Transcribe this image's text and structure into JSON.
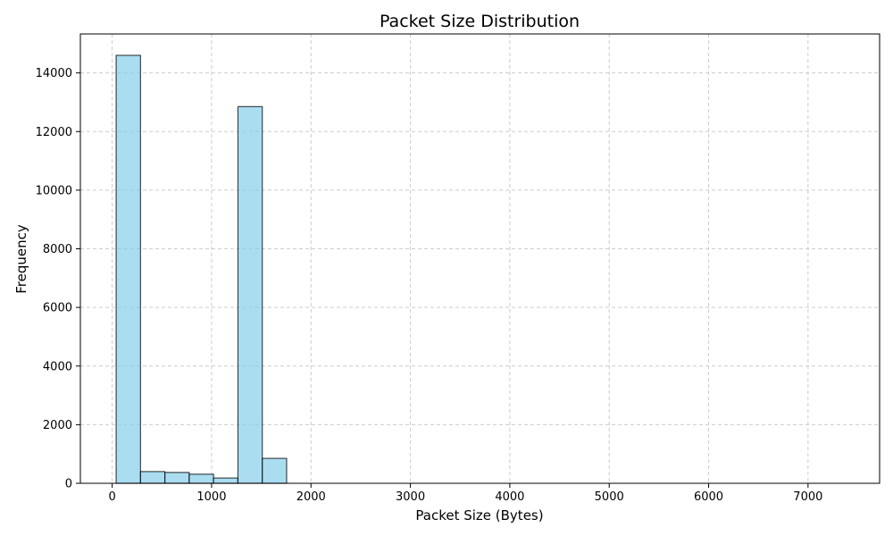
{
  "chart_data": {
    "type": "bar",
    "title": "Packet Size Distribution",
    "xlabel": "Packet Size (Bytes)",
    "ylabel": "Frequency",
    "bins": [
      {
        "x0": 40,
        "x1": 285,
        "value": 14600
      },
      {
        "x0": 285,
        "x1": 530,
        "value": 400
      },
      {
        "x0": 530,
        "x1": 775,
        "value": 370
      },
      {
        "x0": 775,
        "x1": 1020,
        "value": 310
      },
      {
        "x0": 1020,
        "x1": 1265,
        "value": 180
      },
      {
        "x0": 1265,
        "x1": 1510,
        "value": 12850
      },
      {
        "x0": 1510,
        "x1": 1755,
        "value": 850
      },
      {
        "x0": 1755,
        "x1": 2000,
        "value": 0
      },
      {
        "x0": 2000,
        "x1": 2245,
        "value": 0
      },
      {
        "x0": 2245,
        "x1": 2490,
        "value": 0
      },
      {
        "x0": 2490,
        "x1": 2735,
        "value": 0
      },
      {
        "x0": 2735,
        "x1": 2980,
        "value": 0
      },
      {
        "x0": 2980,
        "x1": 3225,
        "value": 0
      },
      {
        "x0": 3225,
        "x1": 3470,
        "value": 0
      },
      {
        "x0": 3470,
        "x1": 3715,
        "value": 0
      },
      {
        "x0": 3715,
        "x1": 3960,
        "value": 0
      },
      {
        "x0": 3960,
        "x1": 4205,
        "value": 0
      },
      {
        "x0": 4205,
        "x1": 4450,
        "value": 0
      },
      {
        "x0": 4450,
        "x1": 4695,
        "value": 0
      },
      {
        "x0": 4695,
        "x1": 4940,
        "value": 0
      },
      {
        "x0": 4940,
        "x1": 5185,
        "value": 0
      },
      {
        "x0": 5185,
        "x1": 5430,
        "value": 0
      },
      {
        "x0": 5430,
        "x1": 5675,
        "value": 0
      },
      {
        "x0": 5675,
        "x1": 5920,
        "value": 0
      },
      {
        "x0": 5920,
        "x1": 6165,
        "value": 0
      },
      {
        "x0": 6165,
        "x1": 6410,
        "value": 0
      },
      {
        "x0": 6410,
        "x1": 6655,
        "value": 0
      },
      {
        "x0": 6655,
        "x1": 6900,
        "value": 0
      },
      {
        "x0": 6900,
        "x1": 7145,
        "value": 0
      },
      {
        "x0": 7145,
        "x1": 7390,
        "value": 0
      }
    ],
    "xlim": [
      -320,
      7720
    ],
    "ylim": [
      0,
      15330
    ],
    "xticks": [
      0,
      1000,
      2000,
      3000,
      4000,
      5000,
      6000,
      7000
    ],
    "yticks": [
      0,
      2000,
      4000,
      6000,
      8000,
      10000,
      12000,
      14000
    ],
    "grid": true,
    "colors": {
      "bar_fill": "#87ceeb",
      "bar_edge": "#000000",
      "grid": "#cccccc",
      "axis": "#000000"
    }
  }
}
